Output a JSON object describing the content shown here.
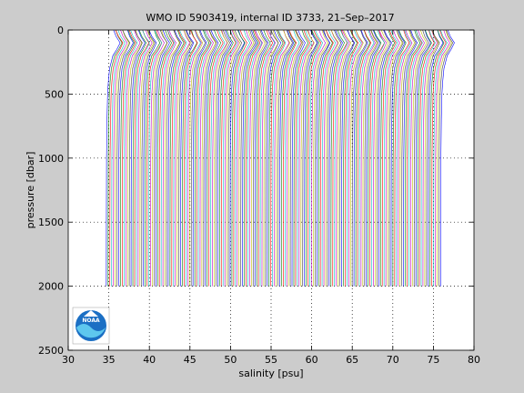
{
  "chart_data": {
    "type": "line",
    "title": "WMO ID 5903419, internal ID 3733, 21–Sep–2017",
    "xlabel": "salinity [psu]",
    "ylabel": "pressure [dbar]",
    "xlim": [
      30,
      80
    ],
    "ylim": [
      0,
      2500
    ],
    "y_reversed": true,
    "x_ticks": [
      30,
      35,
      40,
      45,
      50,
      55,
      60,
      65,
      70,
      75,
      80
    ],
    "y_ticks": [
      0,
      500,
      1000,
      1500,
      2000,
      2500
    ],
    "grid": true,
    "profile_count": 190,
    "profile_offset_step": 0.218,
    "profile_shape": {
      "pressure": [
        0,
        50,
        100,
        150,
        200,
        300,
        400,
        500,
        700,
        1000,
        1500,
        2000
      ],
      "salinity": [
        35.6,
        35.9,
        36.4,
        36.0,
        35.5,
        35.1,
        34.95,
        34.85,
        34.78,
        34.72,
        34.7,
        34.69
      ]
    },
    "colors": [
      "#0000ff",
      "#008000",
      "#ff0000",
      "#00bfbf",
      "#bf00bf",
      "#bfbf00",
      "#404040"
    ],
    "logo": {
      "name": "noaa-logo",
      "text": "NOAA"
    }
  }
}
